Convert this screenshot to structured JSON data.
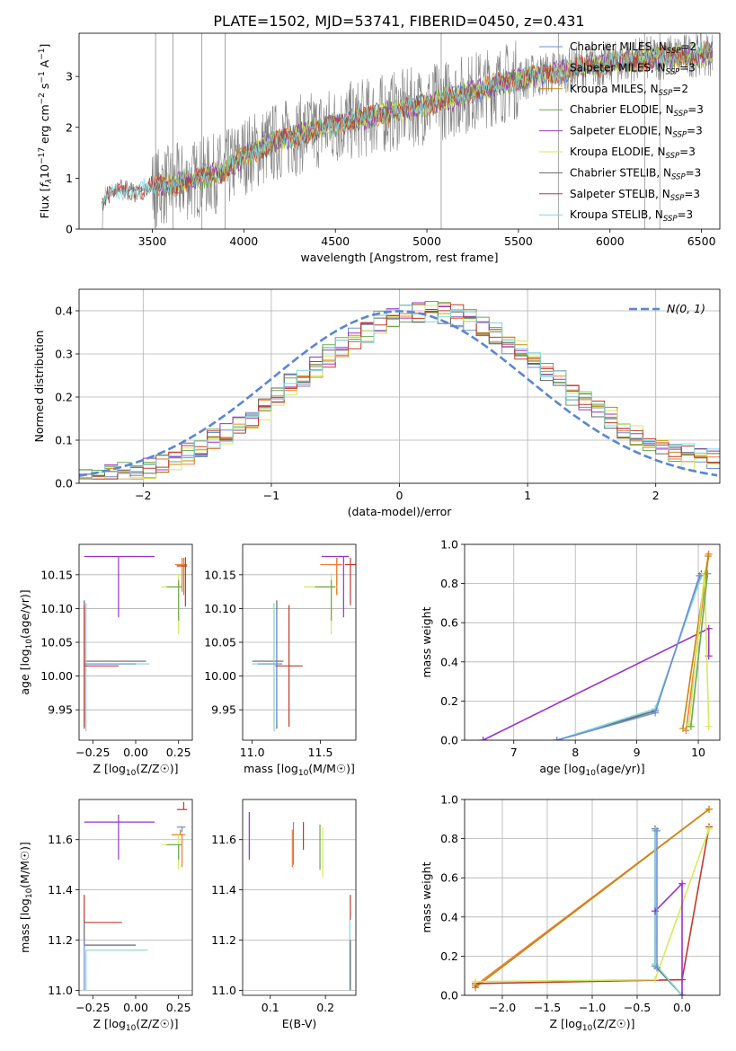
{
  "figure": {
    "title": "PLATE=1502, MJD=53741, FIBERID=0450, z=0.431"
  },
  "colors": {
    "Chabrier MILES": "#6a8fd8",
    "Salpeter MILES": "#ee7d3a",
    "Kroupa MILES": "#c8860a",
    "Chabrier ELODIE": "#6aa84f",
    "Salpeter ELODIE": "#9b30c8",
    "Kroupa ELODIE": "#d4ea5a",
    "Chabrier STELIB": "#666666",
    "Salpeter STELIB": "#c0392b",
    "Kroupa STELIB": "#7fd7d8",
    "spectrum": "#808080",
    "normal": "#5b86d0"
  },
  "chart_data": [
    {
      "id": "spectrum",
      "type": "line",
      "title": "PLATE=1502, MJD=53741, FIBERID=0450, z=0.431",
      "xlabel": "wavelength [Angstrom, rest frame]",
      "ylabel": "Flux [f_λ 10^-17 erg cm^-2 s^-1 A^-1]",
      "xlim": [
        3100,
        6600
      ],
      "ylim": [
        0,
        3.85
      ],
      "xticks": [
        3500,
        4000,
        4500,
        5000,
        5500,
        6000,
        6500
      ],
      "yticks": [
        0,
        1,
        2,
        3
      ],
      "legend_position": "upper right",
      "legend": [
        {
          "label": "Chabrier MILES, N",
          "sub": "SSP",
          "suffix": "=2"
        },
        {
          "label": "Salpeter MILES, N",
          "sub": "SSP",
          "suffix": "=3"
        },
        {
          "label": "Kroupa MILES, N",
          "sub": "SSP",
          "suffix": "=2"
        },
        {
          "label": "Chabrier ELODIE, N",
          "sub": "SSP",
          "suffix": "=3"
        },
        {
          "label": "Salpeter ELODIE, N",
          "sub": "SSP",
          "suffix": "=3"
        },
        {
          "label": "Kroupa ELODIE, N",
          "sub": "SSP",
          "suffix": "=3"
        },
        {
          "label": "Chabrier STELIB, N",
          "sub": "SSP",
          "suffix": "=3"
        },
        {
          "label": "Salpeter STELIB, N",
          "sub": "SSP",
          "suffix": "=3"
        },
        {
          "label": "Kroupa STELIB, N",
          "sub": "SSP",
          "suffix": "=3"
        }
      ],
      "continuum_x": [
        3220,
        3300,
        3500,
        3700,
        3900,
        4000,
        4200,
        4500,
        4800,
        5000,
        5300,
        5500,
        5800,
        6000,
        6200,
        6550
      ],
      "continuum_y": [
        0.55,
        0.75,
        0.8,
        0.95,
        1.15,
        1.45,
        1.75,
        2.05,
        2.3,
        2.45,
        2.75,
        2.95,
        3.15,
        3.25,
        3.35,
        3.45
      ],
      "spikes_x": [
        3898,
        5078,
        6272,
        6189,
        5718,
        3518,
        3612,
        3771
      ]
    },
    {
      "id": "residual_histogram",
      "type": "line",
      "xlabel": "(data-model)/error",
      "ylabel": "Normed distribution",
      "xlim": [
        -2.5,
        2.5
      ],
      "ylim": [
        0,
        0.45
      ],
      "xticks": [
        -2,
        -1,
        0,
        1,
        2
      ],
      "yticks": [
        0.0,
        0.1,
        0.2,
        0.3,
        0.4
      ],
      "legend_position": "upper right",
      "legend_label": "N(0, 1)",
      "reference_curve": "standard normal pdf, mean 0, sigma 1",
      "bin_width": 0.1
    },
    {
      "id": "age_vs_Z",
      "type": "scatter",
      "xlabel": "Z [log10(Z/Z☉)]",
      "ylabel": "age [log10(age/yr)]",
      "xlim": [
        -0.33,
        0.33
      ],
      "ylim": [
        9.905,
        10.195
      ],
      "xticks": [
        -0.25,
        0.0,
        0.25
      ],
      "yticks": [
        9.95,
        10.0,
        10.05,
        10.1,
        10.15
      ],
      "points": [
        {
          "model": "Salpeter ELODIE",
          "x": -0.1,
          "y": 10.177,
          "xerr": [
            0.2,
            0.21
          ],
          "yerr": [
            0.09,
            0.0
          ]
        },
        {
          "model": "Kroupa MILES",
          "x": 0.28,
          "y": 10.165,
          "xerr": [
            0.05,
            0.02
          ],
          "yerr": [
            0.045,
            0.01
          ]
        },
        {
          "model": "Salpeter MILES",
          "x": 0.27,
          "y": 10.165,
          "xerr": [
            0.04,
            0.02
          ],
          "yerr": [
            0.04,
            0.01
          ]
        },
        {
          "model": "Salpeter STELIB",
          "x": 0.29,
          "y": 10.163,
          "xerr": [
            0.05,
            0.01
          ],
          "yerr": [
            0.06,
            0.013
          ]
        },
        {
          "model": "Kroupa ELODIE",
          "x": 0.25,
          "y": 10.132,
          "xerr": [
            0.1,
            0.02
          ],
          "yerr": [
            0.07,
            0.02
          ]
        },
        {
          "model": "Chabrier ELODIE",
          "x": 0.25,
          "y": 10.132,
          "xerr": [
            0.07,
            0.02
          ],
          "yerr": [
            0.05,
            0.01
          ]
        },
        {
          "model": "Chabrier STELIB",
          "x": -0.3,
          "y": 10.022,
          "xerr": [
            0.0,
            0.36
          ],
          "yerr": [
            0.1,
            0.09
          ]
        },
        {
          "model": "Kroupa STELIB",
          "x": -0.29,
          "y": 10.018,
          "xerr": [
            0.0,
            0.37
          ],
          "yerr": [
            0.1,
            0.09
          ]
        },
        {
          "model": "Chabrier MILES",
          "x": -0.3,
          "y": 10.018,
          "xerr": [
            0.0,
            0.3
          ],
          "yerr": [
            0.09,
            0.08
          ]
        },
        {
          "model": "Salpeter STELIB",
          "x": -0.3,
          "y": 10.015,
          "xerr": [
            0.0,
            0.2
          ],
          "yerr": [
            0.09,
            0.09
          ]
        }
      ]
    },
    {
      "id": "age_vs_mass",
      "type": "scatter",
      "xlabel": "mass [log10(M/M☉)]",
      "ylabel": "",
      "xlim": [
        10.93,
        11.76
      ],
      "ylim": [
        9.905,
        10.195
      ],
      "xticks": [
        11.0,
        11.5
      ],
      "yticks": [
        9.95,
        10.0,
        10.05,
        10.1,
        10.15
      ],
      "points": [
        {
          "model": "Salpeter ELODIE",
          "x": 11.67,
          "y": 10.177,
          "xerr": [
            0.16,
            0.04
          ],
          "yerr": [
            0.09,
            0.0
          ]
        },
        {
          "model": "Kroupa MILES",
          "x": 11.62,
          "y": 10.165,
          "xerr": [
            0.12,
            0.04
          ],
          "yerr": [
            0.045,
            0.01
          ]
        },
        {
          "model": "Salpeter MILES",
          "x": 11.62,
          "y": 10.165,
          "xerr": [
            0.1,
            0.04
          ],
          "yerr": [
            0.045,
            0.01
          ]
        },
        {
          "model": "Salpeter STELIB",
          "x": 11.72,
          "y": 10.165,
          "xerr": [
            0.04,
            0.04
          ],
          "yerr": [
            0.06,
            0.01
          ]
        },
        {
          "model": "Kroupa ELODIE",
          "x": 11.58,
          "y": 10.132,
          "xerr": [
            0.2,
            0.04
          ],
          "yerr": [
            0.07,
            0.02
          ]
        },
        {
          "model": "Chabrier ELODIE",
          "x": 11.58,
          "y": 10.132,
          "xerr": [
            0.12,
            0.03
          ],
          "yerr": [
            0.05,
            0.01
          ]
        },
        {
          "model": "Chabrier STELIB",
          "x": 11.18,
          "y": 10.022,
          "xerr": [
            0.18,
            0.05
          ],
          "yerr": [
            0.1,
            0.09
          ]
        },
        {
          "model": "Kroupa STELIB",
          "x": 11.16,
          "y": 10.018,
          "xerr": [
            0.16,
            0.06
          ],
          "yerr": [
            0.1,
            0.09
          ]
        },
        {
          "model": "Chabrier MILES",
          "x": 11.18,
          "y": 10.018,
          "xerr": [
            0.14,
            0.04
          ],
          "yerr": [
            0.09,
            0.08
          ]
        },
        {
          "model": "Salpeter STELIB",
          "x": 11.27,
          "y": 10.015,
          "xerr": [
            0.1,
            0.1
          ],
          "yerr": [
            0.09,
            0.09
          ]
        }
      ]
    },
    {
      "id": "mass_weight_vs_age",
      "type": "line",
      "xlabel": "age [log10(age/yr)]",
      "ylabel": "mass weight",
      "xlim": [
        6.2,
        10.35
      ],
      "ylim": [
        0,
        1
      ],
      "xticks": [
        7,
        8,
        9,
        10
      ],
      "yticks": [
        0.0,
        0.2,
        0.4,
        0.6,
        0.8,
        1.0
      ],
      "series": [
        {
          "model": "Salpeter ELODIE",
          "x": [
            6.5,
            10.17,
            10.17
          ],
          "y": [
            0.0,
            0.57,
            0.43
          ]
        },
        {
          "model": "Chabrier STELIB",
          "x": [
            7.7,
            9.3,
            10.05
          ],
          "y": [
            0.0,
            0.15,
            0.85
          ]
        },
        {
          "model": "Kroupa STELIB",
          "x": [
            7.7,
            9.3,
            10.05
          ],
          "y": [
            0.0,
            0.16,
            0.84
          ]
        },
        {
          "model": "Chabrier MILES",
          "x": [
            7.7,
            9.3,
            10.02
          ],
          "y": [
            0.0,
            0.14,
            0.84
          ]
        },
        {
          "model": "Salpeter MILES",
          "x": [
            9.8,
            10.17
          ],
          "y": [
            0.05,
            0.95
          ]
        },
        {
          "model": "Kroupa MILES",
          "x": [
            9.75,
            10.16
          ],
          "y": [
            0.06,
            0.94
          ]
        },
        {
          "model": "Kroupa ELODIE",
          "x": [
            9.85,
            10.1,
            10.17
          ],
          "y": [
            0.08,
            0.85,
            0.07
          ]
        },
        {
          "model": "Chabrier ELODIE",
          "x": [
            9.88,
            10.15
          ],
          "y": [
            0.07,
            0.85
          ]
        }
      ]
    },
    {
      "id": "mass_vs_Z",
      "type": "scatter",
      "xlabel": "Z [log10(Z/Z☉)]",
      "ylabel": "mass [log10(M/M☉)]",
      "xlim": [
        -0.33,
        0.33
      ],
      "ylim": [
        10.98,
        11.76
      ],
      "xticks": [
        -0.25,
        0.0,
        0.25
      ],
      "yticks": [
        11.0,
        11.2,
        11.4,
        11.6
      ],
      "points": [
        {
          "model": "Salpeter ELODIE",
          "x": -0.1,
          "y": 11.67,
          "xerr": [
            0.2,
            0.21
          ],
          "yerr": [
            0.15,
            0.03
          ]
        },
        {
          "model": "Salpeter STELIB",
          "x": 0.28,
          "y": 11.72,
          "xerr": [
            0.04,
            0.02
          ],
          "yerr": [
            0.0,
            0.03
          ]
        },
        {
          "model": "Kroupa MILES",
          "x": 0.26,
          "y": 11.62,
          "xerr": [
            0.05,
            0.02
          ],
          "yerr": [
            0.0,
            0.02
          ]
        },
        {
          "model": "Salpeter MILES",
          "x": 0.27,
          "y": 11.62,
          "xerr": [
            0.04,
            0.02
          ],
          "yerr": [
            0.13,
            0.0
          ]
        },
        {
          "model": "Chabrier MILES",
          "x": 0.27,
          "y": 11.65,
          "xerr": [
            0.03,
            0.02
          ],
          "yerr": [
            0.02,
            0.0
          ]
        },
        {
          "model": "Kroupa ELODIE",
          "x": 0.25,
          "y": 11.58,
          "xerr": [
            0.1,
            0.02
          ],
          "yerr": [
            0.1,
            0.04
          ]
        },
        {
          "model": "Chabrier ELODIE",
          "x": 0.25,
          "y": 11.58,
          "xerr": [
            0.07,
            0.02
          ],
          "yerr": [
            0.06,
            0.0
          ]
        },
        {
          "model": "Salpeter STELIB",
          "x": -0.3,
          "y": 11.27,
          "xerr": [
            0.0,
            0.22
          ],
          "yerr": [
            0.0,
            0.11
          ]
        },
        {
          "model": "Chabrier STELIB",
          "x": -0.3,
          "y": 11.18,
          "xerr": [
            0.0,
            0.3
          ],
          "yerr": [
            0.0,
            0.1
          ]
        },
        {
          "model": "Kroupa STELIB",
          "x": -0.29,
          "y": 11.16,
          "xerr": [
            0.0,
            0.36
          ],
          "yerr": [
            0.16,
            0.0
          ]
        },
        {
          "model": "Chabrier MILES",
          "x": -0.3,
          "y": 11.15,
          "xerr": [
            0.0,
            0.0
          ],
          "yerr": [
            0.15,
            0.05
          ]
        }
      ]
    },
    {
      "id": "mass_vs_EBV",
      "type": "scatter",
      "xlabel": "E(B-V)",
      "ylabel": "",
      "xlim": [
        0.05,
        0.255
      ],
      "ylim": [
        10.98,
        11.76
      ],
      "xticks": [
        0.1,
        0.2
      ],
      "yticks": [
        11.0,
        11.2,
        11.4,
        11.6
      ],
      "points": [
        {
          "model": "Salpeter ELODIE",
          "x": 0.062,
          "y": 11.62,
          "yerr": [
            0.1,
            0.09
          ]
        },
        {
          "model": "Salpeter MILES",
          "x": 0.14,
          "y": 11.58,
          "yerr": [
            0.09,
            0.06
          ]
        },
        {
          "model": "Chabrier MILES",
          "x": 0.142,
          "y": 11.6,
          "yerr": [
            0.1,
            0.07
          ]
        },
        {
          "model": "Salpeter STELIB",
          "x": 0.16,
          "y": 11.62,
          "yerr": [
            0.06,
            0.05
          ]
        },
        {
          "model": "Chabrier ELODIE",
          "x": 0.19,
          "y": 11.58,
          "yerr": [
            0.1,
            0.08
          ]
        },
        {
          "model": "Kroupa ELODIE",
          "x": 0.195,
          "y": 11.57,
          "yerr": [
            0.12,
            0.08
          ]
        },
        {
          "model": "Salpeter STELIB",
          "x": 0.245,
          "y": 11.28,
          "yerr": [
            0.0,
            0.1
          ]
        },
        {
          "model": "Kroupa STELIB",
          "x": 0.244,
          "y": 11.16,
          "yerr": [
            0.16,
            0.12
          ]
        },
        {
          "model": "Chabrier STELIB",
          "x": 0.245,
          "y": 11.1,
          "yerr": [
            0.1,
            0.1
          ]
        }
      ]
    },
    {
      "id": "mass_weight_vs_Z",
      "type": "line",
      "xlabel": "Z [log10(Z/Z☉)]",
      "ylabel": "mass weight",
      "xlim": [
        -2.42,
        0.42
      ],
      "ylim": [
        0,
        1
      ],
      "xticks": [
        -2.0,
        -1.5,
        -1.0,
        -0.5,
        0.0
      ],
      "yticks": [
        0.0,
        0.2,
        0.4,
        0.6,
        0.8,
        1.0
      ],
      "series": [
        {
          "model": "Salpeter MILES",
          "x": [
            -2.3,
            0.3
          ],
          "y": [
            0.05,
            0.95
          ]
        },
        {
          "model": "Kroupa MILES",
          "x": [
            -2.3,
            0.3
          ],
          "y": [
            0.04,
            0.95
          ]
        },
        {
          "model": "Salpeter STELIB",
          "x": [
            -2.3,
            0.0,
            0.3
          ],
          "y": [
            0.06,
            0.08,
            0.86
          ]
        },
        {
          "model": "Kroupa ELODIE",
          "x": [
            -2.3,
            -0.3,
            0.3
          ],
          "y": [
            0.07,
            0.08,
            0.85
          ]
        },
        {
          "model": "Chabrier STELIB",
          "x": [
            -0.3,
            -0.3,
            0.0
          ],
          "y": [
            0.85,
            0.15,
            0.0
          ]
        },
        {
          "model": "Kroupa STELIB",
          "x": [
            -0.3,
            -0.3,
            0.0
          ],
          "y": [
            0.84,
            0.16,
            0.0
          ]
        },
        {
          "model": "Salpeter ELODIE",
          "x": [
            -0.3,
            0.0,
            0.0
          ],
          "y": [
            0.43,
            0.57,
            0.0
          ]
        },
        {
          "model": "Chabrier MILES",
          "x": [
            -0.28,
            -0.28
          ],
          "y": [
            0.84,
            0.14
          ]
        }
      ]
    }
  ]
}
